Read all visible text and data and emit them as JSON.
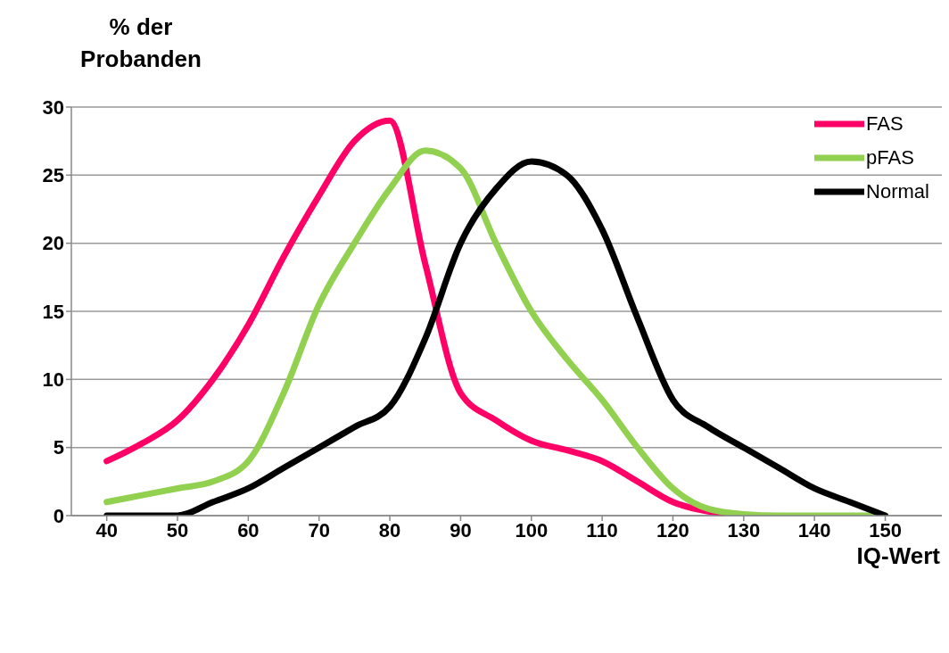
{
  "chart_data": {
    "type": "line",
    "ylabel": "% der Probanden",
    "xlabel": "IQ-Wert",
    "x": [
      40,
      45,
      50,
      55,
      60,
      65,
      70,
      75,
      80,
      85,
      90,
      95,
      100,
      105,
      110,
      115,
      120,
      125,
      130,
      135,
      140,
      145,
      150
    ],
    "series": [
      {
        "name": "FAS",
        "color": "#ff0066",
        "values": [
          4,
          5.3,
          7,
          10,
          14,
          19,
          23.5,
          27.5,
          29,
          18.5,
          9,
          7,
          5.5,
          4.8,
          4,
          2.5,
          1,
          0.3,
          0,
          null,
          null,
          null,
          null
        ]
      },
      {
        "name": "pFAS",
        "color": "#92d050",
        "values": [
          1,
          1.5,
          2,
          2.5,
          4,
          9,
          15.5,
          20,
          24,
          26.8,
          25.5,
          20,
          15,
          11.5,
          8.5,
          5,
          2,
          0.5,
          0.1,
          0,
          0,
          0,
          0
        ]
      },
      {
        "name": "Normal",
        "color": "#000000",
        "values": [
          0,
          0,
          0,
          1,
          2,
          3.5,
          5,
          6.5,
          8,
          13,
          20,
          24,
          26,
          25,
          21,
          14.5,
          8.5,
          6.5,
          5,
          3.5,
          2,
          1,
          0
        ]
      }
    ],
    "xlim": [
      35,
      158
    ],
    "xticks": [
      40,
      50,
      60,
      70,
      80,
      90,
      100,
      110,
      120,
      130,
      140,
      150
    ],
    "ylim": [
      0,
      30
    ],
    "yticks": [
      0,
      5,
      10,
      15,
      20,
      25,
      30
    ],
    "grid": "y",
    "legend": "top right",
    "marker": "none",
    "line_style": "solid"
  }
}
